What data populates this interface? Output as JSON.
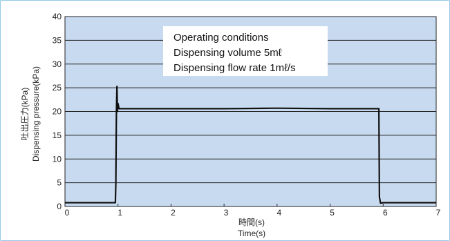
{
  "chart_data": {
    "type": "line",
    "xlabel_jp": "時間(s)",
    "xlabel_en": "Time(s)",
    "ylabel_jp": "吐出圧力(kPa)",
    "ylabel_en": "Dispensing pressure(kPa)",
    "xlim": [
      0,
      7
    ],
    "ylim": [
      0,
      40
    ],
    "x_ticks": [
      0,
      1,
      2,
      3,
      4,
      5,
      6,
      7
    ],
    "y_ticks": [
      0,
      5,
      10,
      15,
      20,
      25,
      30,
      35,
      40
    ],
    "grid": "horizontal",
    "annotation": [
      "Operating conditions",
      "Dispensing volume 5mℓ",
      "Dispensing flow rate 1mℓ/s"
    ],
    "series": [
      {
        "x": [
          0,
          0.5,
          0.95,
          0.96,
          0.97,
          0.98,
          0.99,
          1.0,
          1.02,
          1.1,
          2.0,
          3.0,
          4.0,
          5.0,
          5.9,
          5.92,
          5.93,
          5.95,
          6.0,
          7.0
        ],
        "y": [
          0.8,
          0.8,
          0.8,
          5,
          20,
          25.3,
          20,
          21.7,
          20.6,
          20.6,
          20.6,
          20.6,
          20.7,
          20.6,
          20.6,
          20.6,
          2,
          0.7,
          0.8,
          0.8
        ]
      }
    ],
    "colors": {
      "plot_bg": "#c8daf0",
      "line": "#111111",
      "grid": "#222222",
      "frame": "#8fc7e8"
    }
  }
}
